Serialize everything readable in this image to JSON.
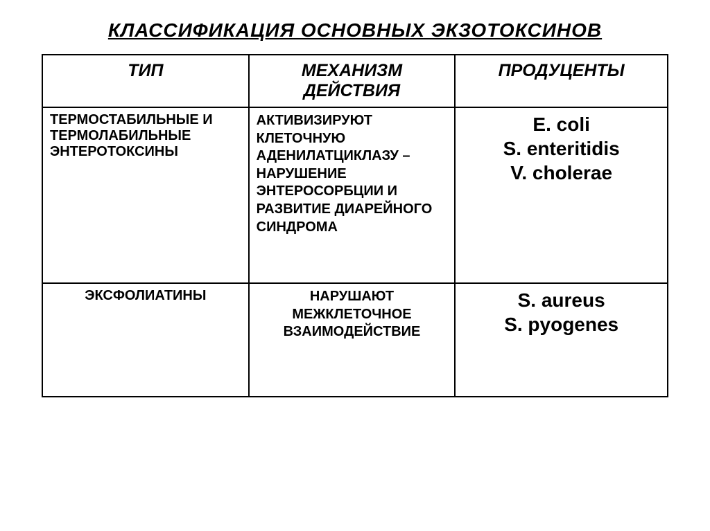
{
  "title": "КЛАССИФИКАЦИЯ  ОСНОВНЫХ  ЭКЗОТОКСИНОВ",
  "table": {
    "columns": [
      "ТИП",
      "МЕХАНИЗМ ДЕЙСТВИЯ",
      "ПРОДУЦЕНТЫ"
    ],
    "rows": [
      {
        "type": "ТЕРМОСТАБИЛЬНЫЕ И ТЕРМОЛАБИЛЬНЫЕ ЭНТЕРОТОКСИНЫ",
        "mechanism": "АКТИВИЗИРУЮТ КЛЕТОЧНУЮ АДЕНИЛАТЦИКЛАЗУ – НАРУШЕНИЕ ЭНТЕРОСОРБЦИИ И РАЗВИТИЕ ДИАРЕЙНОГО  СИНДРОМА",
        "producers": "E. coli\nS. enteritidis\nV. cholerae"
      },
      {
        "type": "ЭКСФОЛИАТИНЫ",
        "mechanism": "НАРУШАЮТ МЕЖКЛЕТОЧНОЕ ВЗАИМОДЕЙСТВИЕ",
        "producers": "S. aureus\nS. pyogenes"
      }
    ],
    "col_widths_pct": [
      33,
      33,
      34
    ],
    "border_color": "#000000",
    "background_color": "#ffffff",
    "title_fontsize_pt": 21,
    "header_fontsize_pt": 19,
    "body_fontsize_pt": 15,
    "producers_fontsize_pt": 21
  }
}
